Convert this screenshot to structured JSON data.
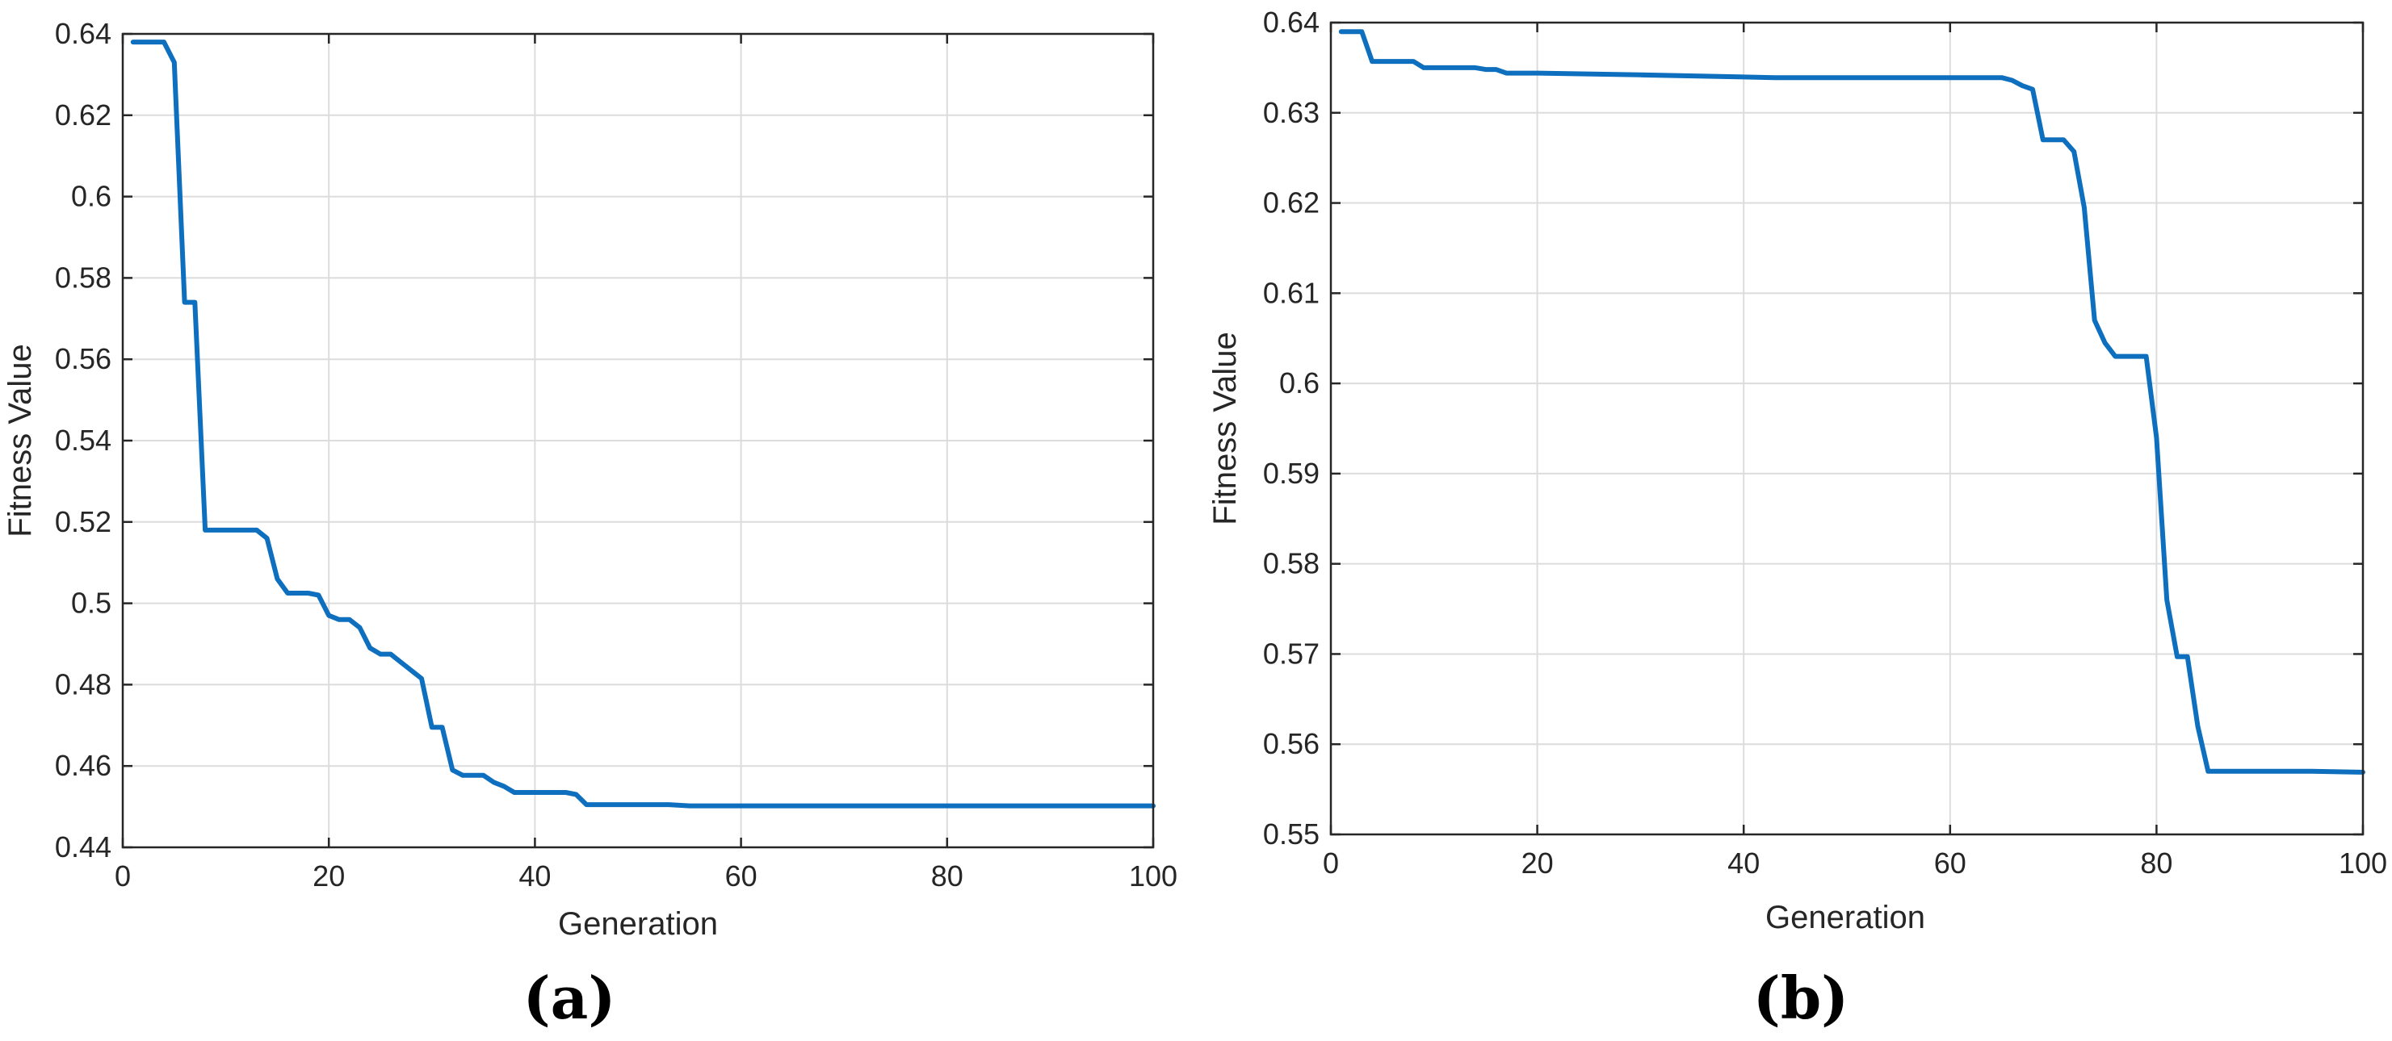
{
  "colors": {
    "series": "#0e6fbe",
    "axes": "#262626",
    "grid": "#dcdcdc"
  },
  "chart_data": [
    {
      "type": "line",
      "panel_label": "(a)",
      "title": "",
      "xlabel": "Generation",
      "ylabel": "Fitness Value",
      "xlim": [
        0,
        100
      ],
      "ylim": [
        0.44,
        0.64
      ],
      "xticks": [
        0,
        20,
        40,
        60,
        80,
        100
      ],
      "yticks": [
        0.44,
        0.46,
        0.48,
        0.5,
        0.52,
        0.54,
        0.56,
        0.58,
        0.6,
        0.62,
        0.64
      ],
      "xtick_labels": [
        "0",
        "20",
        "40",
        "60",
        "80",
        "100"
      ],
      "ytick_labels": [
        "0.44",
        "0.46",
        "0.48",
        "0.5",
        "0.52",
        "0.54",
        "0.56",
        "0.58",
        "0.6",
        "0.62",
        "0.64"
      ],
      "grid": true,
      "series": [
        {
          "x": [
            1,
            4,
            5,
            6,
            7,
            8,
            13,
            14,
            15,
            16,
            18,
            19,
            20,
            21,
            22,
            23,
            24,
            25,
            26,
            27,
            28,
            29,
            30,
            31,
            32,
            33,
            35,
            36,
            37,
            38,
            43,
            44,
            45,
            53,
            55,
            100
          ],
          "y": [
            0.638,
            0.638,
            0.633,
            0.574,
            0.574,
            0.518,
            0.518,
            0.516,
            0.506,
            0.5025,
            0.5025,
            0.502,
            0.497,
            0.496,
            0.496,
            0.494,
            0.489,
            0.4875,
            0.4875,
            0.4855,
            0.4835,
            0.4815,
            0.4695,
            0.4695,
            0.459,
            0.4577,
            0.4577,
            0.456,
            0.455,
            0.4535,
            0.4535,
            0.453,
            0.4505,
            0.4505,
            0.4502,
            0.4502
          ]
        }
      ]
    },
    {
      "type": "line",
      "panel_label": "(b)",
      "title": "",
      "xlabel": "Generation",
      "ylabel": "Fitness Value",
      "xlim": [
        0,
        100
      ],
      "ylim": [
        0.55,
        0.64
      ],
      "xticks": [
        0,
        20,
        40,
        60,
        80,
        100
      ],
      "yticks": [
        0.55,
        0.56,
        0.57,
        0.58,
        0.59,
        0.6,
        0.61,
        0.62,
        0.63,
        0.64
      ],
      "xtick_labels": [
        "0",
        "20",
        "40",
        "60",
        "80",
        "100"
      ],
      "ytick_labels": [
        "0.55",
        "0.56",
        "0.57",
        "0.58",
        "0.59",
        "0.6",
        "0.61",
        "0.62",
        "0.63",
        "0.64"
      ],
      "grid": true,
      "series": [
        {
          "x": [
            1,
            3,
            4,
            8,
            9,
            14,
            15,
            16,
            17,
            20,
            30,
            43,
            65,
            66,
            67,
            68,
            69,
            71,
            72,
            73,
            74,
            75,
            76,
            79,
            80,
            81,
            82,
            83,
            84,
            85,
            95,
            100
          ],
          "y": [
            0.639,
            0.639,
            0.6357,
            0.6357,
            0.635,
            0.635,
            0.6348,
            0.6348,
            0.6344,
            0.6344,
            0.6342,
            0.6339,
            0.6339,
            0.6336,
            0.633,
            0.6326,
            0.627,
            0.627,
            0.6257,
            0.6195,
            0.607,
            0.6045,
            0.603,
            0.603,
            0.594,
            0.576,
            0.5697,
            0.5697,
            0.562,
            0.557,
            0.557,
            0.5569
          ]
        }
      ]
    }
  ]
}
